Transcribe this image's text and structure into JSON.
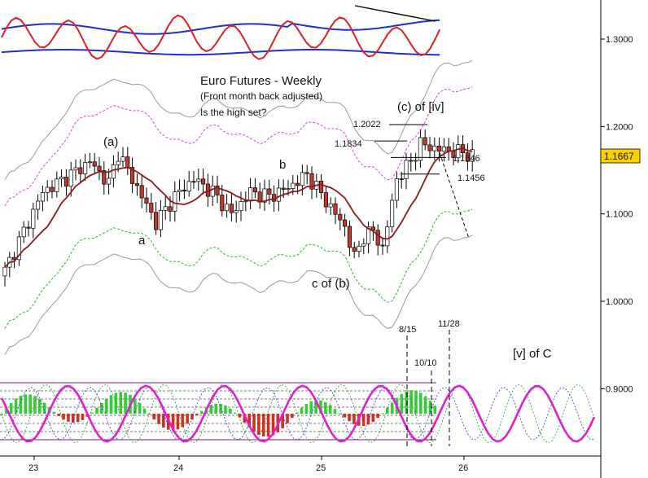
{
  "chart_data": {
    "type": "candlestick",
    "title": "Euro Futures - Weekly",
    "subtitle": "(Front month back adjusted)",
    "question": "Is the high set?",
    "x_ticks": [
      "23",
      "24",
      "25",
      "26"
    ],
    "y_ticks": [
      "1.3000",
      "1.2000",
      "1.1000",
      "1.0000",
      "0.9000"
    ],
    "ylim": [
      0.82,
      1.34
    ],
    "last_price": "1.1667",
    "wave_labels": [
      "(a)",
      "a",
      "b",
      "c of (b)",
      "(c) of [iv]",
      "[v] of C"
    ],
    "price_levels": [
      {
        "label": "1.2022",
        "value": 1.2022
      },
      {
        "label": "1.1834",
        "value": 1.1834
      },
      {
        "label": "1.1646",
        "value": 1.1646
      },
      {
        "label": "1.1456",
        "value": 1.1456
      }
    ],
    "date_markers": [
      "8/15",
      "10/10",
      "11/28"
    ],
    "colors": {
      "up_candle": "#ffffff",
      "down_candle": "#c0392b",
      "moving_average": "#8b1a1a",
      "outer_band": "#9a9a9a",
      "upper_band": "#e040e0",
      "lower_band": "#22bb22",
      "oscillator_red": "#e02020",
      "oscillator_blue": "#1f2fd0",
      "cycle_line": "#e020d0",
      "histogram_up": "#33cc33",
      "histogram_down": "#d03020",
      "price_tag": "#ffd000"
    }
  }
}
